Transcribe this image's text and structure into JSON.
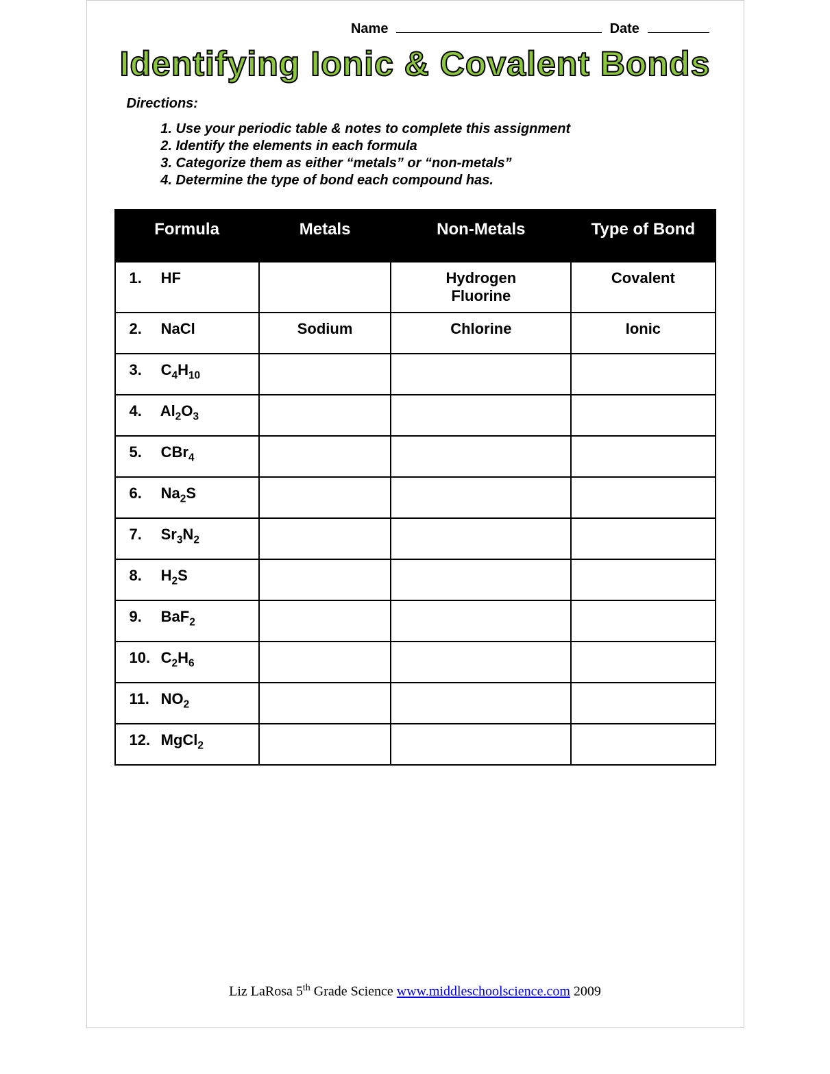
{
  "header": {
    "name_label": "Name",
    "date_label": "Date"
  },
  "title": "Identifying Ionic & Covalent Bonds",
  "directions_label": "Directions:",
  "directions": [
    "Use your periodic table & notes to complete this assignment",
    "Identify the elements in each formula",
    "Categorize them as either “metals” or “non-metals”",
    "Determine the type of bond each compound has."
  ],
  "table": {
    "columns": [
      "Formula",
      "Metals",
      "Non-Metals",
      "Type of Bond"
    ],
    "header_bg": "#000000",
    "header_fg": "#ffffff",
    "border_color": "#000000",
    "rows": [
      {
        "num": "1.",
        "formula_html": "HF",
        "metals": "",
        "nonmetals": "Hydrogen Fluorine",
        "bond": "Covalent"
      },
      {
        "num": "2.",
        "formula_html": "NaCl",
        "metals": "Sodium",
        "nonmetals": "Chlorine",
        "bond": "Ionic"
      },
      {
        "num": "3.",
        "formula_html": "C<sub>4</sub>H<sub>10</sub>",
        "metals": "",
        "nonmetals": "",
        "bond": ""
      },
      {
        "num": "4.",
        "formula_html": "Al<sub>2</sub>O<sub>3</sub>",
        "metals": "",
        "nonmetals": "",
        "bond": ""
      },
      {
        "num": "5.",
        "formula_html": "CBr<sub>4</sub>",
        "metals": "",
        "nonmetals": "",
        "bond": ""
      },
      {
        "num": "6.",
        "formula_html": "Na<sub>2</sub>S",
        "metals": "",
        "nonmetals": "",
        "bond": ""
      },
      {
        "num": "7.",
        "formula_html": "Sr<sub>3</sub>N<sub>2</sub>",
        "metals": "",
        "nonmetals": "",
        "bond": ""
      },
      {
        "num": "8.",
        "formula_html": "H<sub>2</sub>S",
        "metals": "",
        "nonmetals": "",
        "bond": ""
      },
      {
        "num": "9.",
        "formula_html": "BaF<sub>2</sub>",
        "metals": "",
        "nonmetals": "",
        "bond": ""
      },
      {
        "num": "10.",
        "formula_html": "C<sub>2</sub>H<sub>6</sub>",
        "metals": "",
        "nonmetals": "",
        "bond": ""
      },
      {
        "num": "11.",
        "formula_html": "NO<sub>2</sub>",
        "metals": "",
        "nonmetals": "",
        "bond": ""
      },
      {
        "num": "12.",
        "formula_html": "MgCl<sub>2</sub>",
        "metals": "",
        "nonmetals": "",
        "bond": ""
      }
    ]
  },
  "footer": {
    "author": "Liz LaRosa 5",
    "author_suffix": "th",
    "course": " Grade Science ",
    "link_text": "www.middleschoolscience.com",
    "year": " 2009"
  },
  "colors": {
    "title_fill": "#8bc63e",
    "title_stroke": "#000000",
    "background": "#ffffff",
    "link": "#0000ee"
  }
}
